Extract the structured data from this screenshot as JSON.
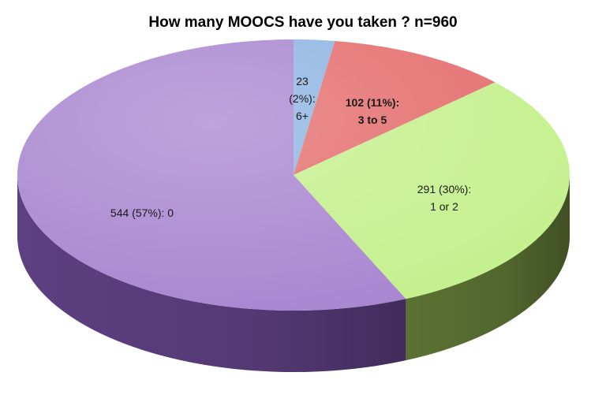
{
  "chart_data": {
    "type": "pie",
    "title": "How many MOOCS have you taken ? n=960",
    "slices": [
      {
        "name": "6+",
        "value": 23,
        "label_lines": [
          "23",
          "(2%):",
          "6+"
        ],
        "color": "#8db3e2",
        "bold": false
      },
      {
        "name": "3 to 5",
        "value": 102,
        "label_lines": [
          "102 (11%):",
          "3 to 5"
        ],
        "color": "#e46c6c",
        "bold": true
      },
      {
        "name": "1 or 2",
        "value": 291,
        "label_lines": [
          "291 (30%):",
          "1 or 2"
        ],
        "color": "#c4f08c",
        "bold": false
      },
      {
        "name": "0",
        "value": 544,
        "label_lines": [
          "544 (57%): 0"
        ],
        "color": "#a884d0",
        "bold": false
      }
    ],
    "side_colors": [
      "#4a6fa8",
      "#a84545",
      "#5b7233",
      "#5e3f82"
    ]
  }
}
